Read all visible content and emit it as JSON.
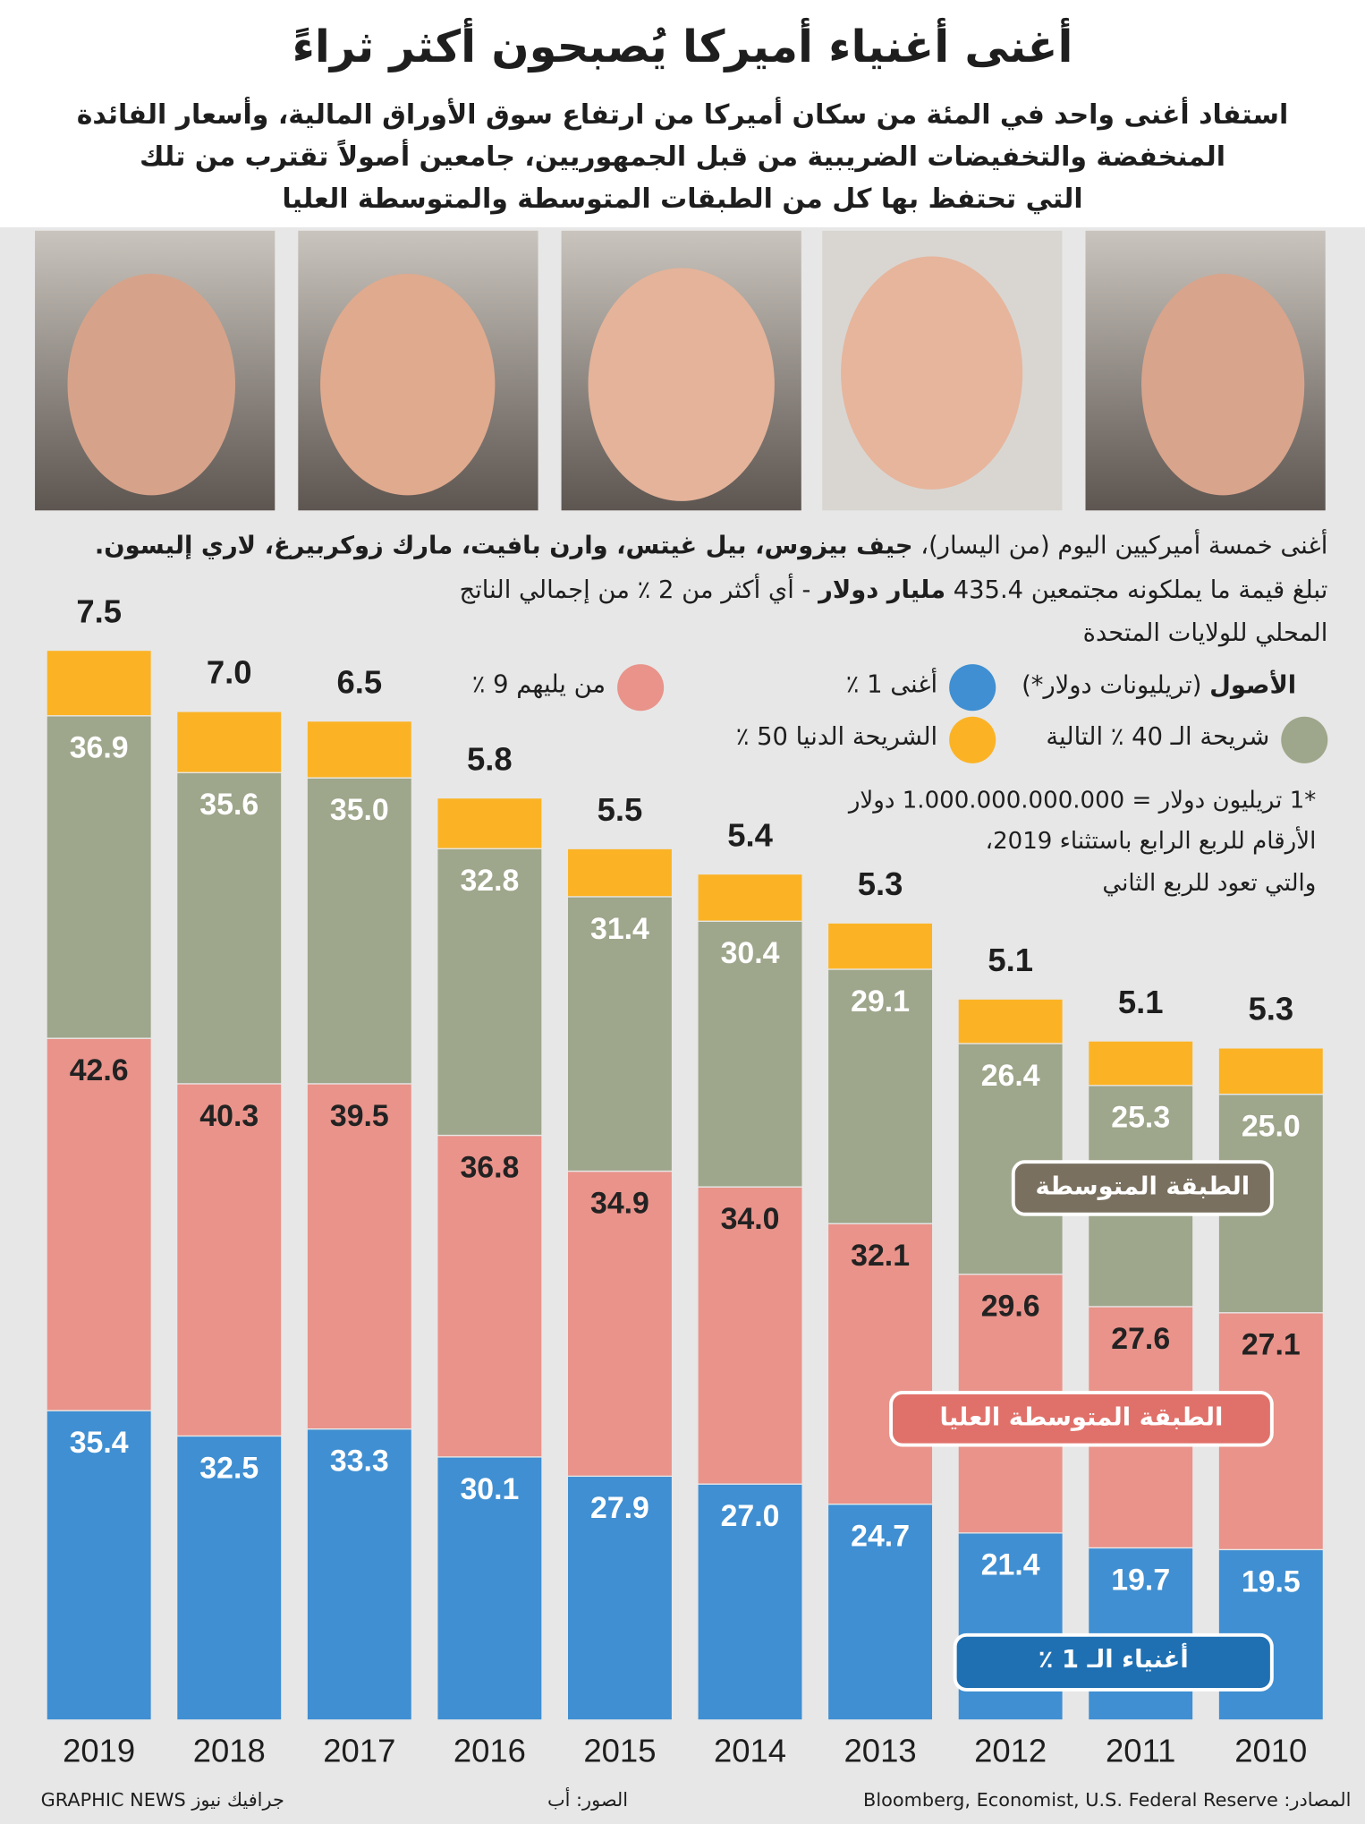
{
  "header": {
    "title": "أغنى أغنياء أميركا يُصبحون أكثر ثراءً",
    "subtitle": [
      "استفاد أغنى واحد في المئة من سكان أميركا من ارتفاع سوق الأوراق المالية، وأسعار الفائدة",
      "المنخفضة والتخفيضات الضريبية من قبل الجمهوريين، جامعين أصولاً تقترب من تلك",
      "التي تحتفظ بها كل من الطبقات المتوسطة والمتوسطة العليا"
    ]
  },
  "caption": {
    "intro": "أغنى خمسة أميركيين اليوم (من اليسار)،",
    "names": "جيف بيزوس، بيل غيتس، وارن بافيت، مارك زوكربيرغ، لاري إليسون.",
    "worth_before": "تبلغ قيمة ما يملكونه مجتمعين 435.4",
    "worth_bold": "مليار دولار",
    "worth_after": "- أي أكثر من 2 ٪ من إجمالي الناتج",
    "worth_end": "المحلي للولايات المتحدة"
  },
  "chart_data": {
    "type": "bar",
    "stacked": true,
    "legend_title": "الأصول",
    "legend_unit": "(تريليونات دولار*)",
    "categories": [
      "2019",
      "2018",
      "2017",
      "2016",
      "2015",
      "2014",
      "2013",
      "2012",
      "2011",
      "2010"
    ],
    "series": [
      {
        "name": "أغنى 1 ٪",
        "color": "#3f8fd2",
        "values": [
          35.4,
          32.5,
          33.3,
          30.1,
          27.9,
          27.0,
          24.7,
          21.4,
          19.7,
          19.5
        ],
        "value_labels": [
          "35.4",
          "32.5",
          "33.3",
          "30.1",
          "27.9",
          "27.0",
          "24.7",
          "21.4",
          "19.7",
          "19.5"
        ]
      },
      {
        "name": "من يليهم 9 ٪",
        "color": "#e9938a",
        "values": [
          42.6,
          40.3,
          39.5,
          36.8,
          34.9,
          34.0,
          32.1,
          29.6,
          27.6,
          27.1
        ],
        "value_labels": [
          "42.6",
          "40.3",
          "39.5",
          "36.8",
          "34.9",
          "34.0",
          "32.1",
          "29.6",
          "27.6",
          "27.1"
        ]
      },
      {
        "name": "شريحة الـ 40 ٪ التالية",
        "color": "#9ea68b",
        "values": [
          36.9,
          35.6,
          35.0,
          32.8,
          31.4,
          30.4,
          29.1,
          26.4,
          25.3,
          25.0
        ],
        "value_labels": [
          "36.9",
          "35.6",
          "35.0",
          "32.8",
          "31.4",
          "30.4",
          "29.1",
          "26.4",
          "25.3",
          "25.0"
        ]
      },
      {
        "name": "الشريحة الدنيا 50 ٪",
        "color": "#fbb325",
        "values": [
          7.5,
          7.0,
          6.5,
          5.8,
          5.5,
          5.4,
          5.3,
          5.1,
          5.1,
          5.3
        ],
        "value_labels": [
          "7.5",
          "7.0",
          "6.5",
          "5.8",
          "5.5",
          "5.4",
          "5.3",
          "5.1",
          "5.1",
          "5.3"
        ]
      }
    ],
    "notes": [
      "*1 تريليون دولار = 1.000.000.000.000 دولار",
      "الأرقام للربع الرابع باستثناء 2019،",
      "والتي تعود للربع الثاني"
    ],
    "annotations": [
      "الطبقة المتوسطة",
      "الطبقة المتوسطة العليا",
      "أغنياء الـ 1 ٪"
    ]
  },
  "footer": {
    "source": "المصادر: Bloomberg, Economist, U.S. Federal Reserve",
    "photos": "الصور: أب",
    "credit": "جرافيك نيوز GRAPHIC NEWS"
  }
}
